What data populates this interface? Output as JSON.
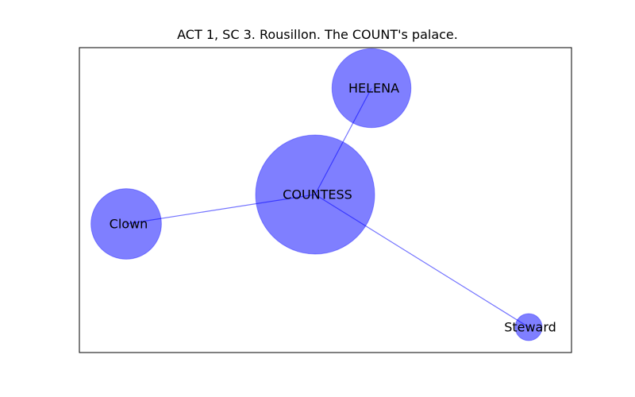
{
  "title": "ACT 1, SC 3. Rousillon. The COUNT's palace.",
  "colors": {
    "node_fill": "#0000ff",
    "node_fill_opacity": 0.5,
    "edge": "#0000ff",
    "frame": "#000000"
  },
  "nodes": [
    {
      "id": "COUNTESS",
      "label": "COUNTESS",
      "weight": 1.0
    },
    {
      "id": "HELENA",
      "label": "HELENA",
      "weight": 0.44
    },
    {
      "id": "Clown",
      "label": "Clown",
      "weight": 0.35
    },
    {
      "id": "Steward",
      "label": "Steward",
      "weight": 0.06
    }
  ],
  "edges": [
    {
      "source": "COUNTESS",
      "target": "HELENA"
    },
    {
      "source": "COUNTESS",
      "target": "Clown"
    },
    {
      "source": "COUNTESS",
      "target": "Steward"
    }
  ]
}
